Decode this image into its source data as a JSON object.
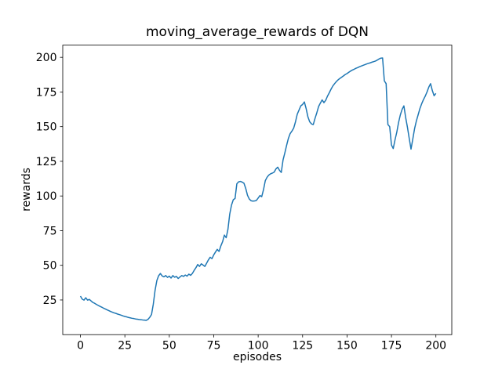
{
  "figure": {
    "background": "#ffffff",
    "text_color": "#000000",
    "frame_color": "#000000"
  },
  "chart_data": {
    "type": "line",
    "title": "moving_average_rewards of DQN",
    "xlabel": "episodes",
    "ylabel": "rewards",
    "x_ticks": [
      0,
      25,
      50,
      75,
      100,
      125,
      150,
      175,
      200
    ],
    "y_ticks": [
      25,
      50,
      75,
      100,
      125,
      150,
      175,
      200
    ],
    "xlim": [
      -9.95,
      208.95
    ],
    "ylim": [
      0,
      208.8
    ],
    "grid": false,
    "legend": "none",
    "line_color": "#1f77b4",
    "line_width": 1.5,
    "series": [
      {
        "name": "moving_average_rewards",
        "x_start": 0,
        "x_step": 1,
        "values": [
          27.8,
          25.6,
          24.9,
          26.6,
          24.9,
          25.4,
          24.3,
          23.2,
          22.6,
          21.8,
          21.1,
          20.4,
          19.8,
          19.1,
          18.5,
          17.9,
          17.3,
          16.7,
          16.2,
          15.7,
          15.3,
          14.8,
          14.4,
          14.0,
          13.5,
          13.1,
          12.8,
          12.4,
          12.1,
          11.8,
          11.6,
          11.3,
          11.1,
          10.9,
          10.8,
          10.6,
          10.5,
          10.3,
          11.0,
          12.5,
          14.5,
          22.0,
          32.0,
          39.0,
          42.5,
          44.1,
          42.3,
          41.7,
          42.6,
          41.3,
          42.2,
          40.8,
          42.6,
          41.4,
          42.0,
          40.5,
          41.6,
          42.6,
          42.0,
          43.0,
          42.2,
          43.6,
          42.8,
          44.2,
          46.4,
          48.3,
          50.6,
          49.2,
          51.1,
          50.2,
          49.2,
          51.5,
          53.9,
          55.8,
          54.8,
          57.5,
          59.6,
          61.5,
          60.0,
          64.0,
          67.1,
          71.8,
          69.9,
          76.0,
          86.9,
          93.4,
          97.3,
          98.2,
          108.8,
          110.2,
          110.5,
          110.0,
          109.2,
          105.5,
          100.5,
          97.8,
          96.6,
          96.3,
          96.4,
          96.8,
          98.5,
          100.3,
          99.5,
          104.5,
          111.0,
          113.5,
          115.1,
          116.0,
          116.5,
          117.2,
          119.5,
          120.8,
          118.5,
          117.0,
          126.0,
          131.0,
          136.5,
          141.5,
          145.0,
          146.8,
          149.0,
          153.5,
          159.0,
          162.0,
          165.0,
          166.0,
          167.8,
          163.0,
          157.0,
          153.5,
          152.0,
          151.5,
          156.0,
          160.0,
          164.5,
          167.0,
          169.3,
          167.3,
          169.0,
          172.0,
          174.4,
          177.0,
          179.3,
          181.0,
          182.5,
          183.8,
          184.8,
          185.7,
          186.6,
          187.6,
          188.3,
          189.2,
          190.1,
          190.8,
          191.4,
          192.1,
          192.6,
          193.2,
          193.7,
          194.2,
          194.7,
          195.2,
          195.6,
          196.0,
          196.5,
          196.9,
          197.3,
          198.0,
          198.8,
          199.4,
          199.5,
          183.0,
          181.0,
          151.5,
          150.0,
          136.8,
          134.2,
          140.5,
          146.0,
          153.0,
          158.5,
          162.5,
          165.0,
          156.5,
          149.5,
          141.5,
          133.8,
          141.0,
          148.5,
          154.0,
          158.5,
          163.0,
          166.5,
          169.5,
          172.0,
          175.0,
          178.5,
          181.0,
          176.0,
          172.3,
          174.0
        ]
      }
    ]
  }
}
